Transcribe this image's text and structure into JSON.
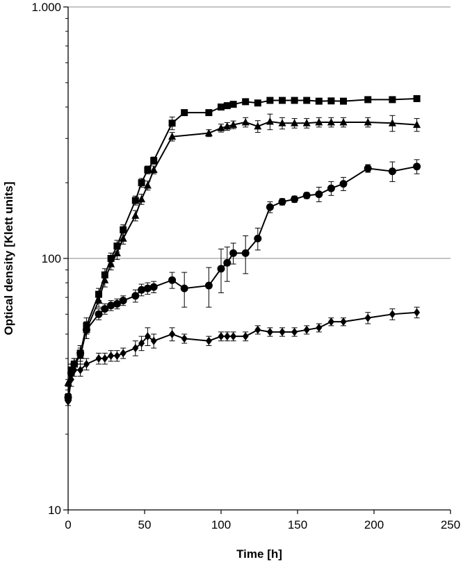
{
  "chart_data": {
    "type": "line",
    "title": "",
    "xlabel": "Time [h]",
    "ylabel": "Optical density [Klett units]",
    "x_scale": "linear",
    "y_scale": "log",
    "xlim": [
      0,
      250
    ],
    "ylim": [
      10,
      1000
    ],
    "x_ticks": [
      0,
      50,
      100,
      150,
      200,
      250
    ],
    "x_tick_labels": [
      "0",
      "50",
      "100",
      "150",
      "200",
      "250"
    ],
    "y_ticks": [
      10,
      100,
      1000
    ],
    "y_tick_labels": [
      "10",
      "100",
      "1.000"
    ],
    "gridlines_y": [
      100,
      1000
    ],
    "legend": "none",
    "series": [
      {
        "marker": "square",
        "x": [
          0,
          2,
          4,
          8,
          12,
          20,
          24,
          28,
          32,
          36,
          44,
          48,
          52,
          56,
          68,
          76,
          92,
          100,
          104,
          108,
          116,
          124,
          132,
          140,
          148,
          156,
          164,
          172,
          180,
          196,
          212,
          228
        ],
        "y": [
          28,
          36,
          38,
          42,
          54,
          72,
          86,
          100,
          112,
          130,
          170,
          200,
          225,
          245,
          345,
          380,
          380,
          400,
          405,
          410,
          420,
          415,
          425,
          425,
          425,
          425,
          422,
          423,
          422,
          428,
          428,
          432
        ],
        "err": [
          1,
          2,
          2,
          3,
          4,
          4,
          5,
          5,
          6,
          6,
          7,
          8,
          8,
          8,
          20,
          10,
          10,
          10,
          8,
          8,
          8,
          8,
          8,
          8,
          8,
          8,
          8,
          8,
          8,
          8,
          8,
          8
        ]
      },
      {
        "marker": "triangle",
        "x": [
          0,
          2,
          4,
          8,
          12,
          20,
          24,
          28,
          32,
          36,
          44,
          48,
          52,
          56,
          68,
          92,
          100,
          104,
          108,
          116,
          124,
          132,
          140,
          148,
          156,
          164,
          172,
          180,
          196,
          212,
          228
        ],
        "y": [
          32,
          36,
          38,
          41,
          52,
          68,
          82,
          95,
          105,
          120,
          148,
          172,
          195,
          225,
          305,
          315,
          330,
          335,
          340,
          348,
          335,
          350,
          345,
          345,
          345,
          348,
          348,
          348,
          348,
          345,
          340
        ],
        "err": [
          1,
          2,
          2,
          3,
          4,
          4,
          5,
          5,
          6,
          6,
          7,
          8,
          8,
          8,
          12,
          10,
          12,
          12,
          12,
          15,
          18,
          25,
          18,
          15,
          15,
          15,
          15,
          15,
          15,
          25,
          20
        ]
      },
      {
        "marker": "circle",
        "x": [
          0,
          2,
          4,
          8,
          12,
          20,
          24,
          28,
          32,
          36,
          44,
          48,
          52,
          56,
          68,
          76,
          92,
          100,
          104,
          108,
          116,
          124,
          132,
          140,
          148,
          156,
          164,
          172,
          180,
          196,
          212,
          228
        ],
        "y": [
          28,
          35,
          38,
          42,
          52,
          60,
          63,
          65,
          66,
          68,
          71,
          75,
          76,
          77,
          82,
          76,
          78,
          91,
          96,
          105,
          105,
          120,
          160,
          168,
          172,
          178,
          180,
          190,
          198,
          228,
          222,
          232
        ],
        "err": [
          1,
          2,
          2,
          3,
          4,
          3,
          3,
          3,
          3,
          3,
          4,
          4,
          4,
          4,
          6,
          12,
          14,
          18,
          15,
          10,
          18,
          12,
          8,
          5,
          5,
          5,
          12,
          12,
          12,
          8,
          20,
          15
        ]
      },
      {
        "marker": "diamond",
        "x": [
          0,
          2,
          4,
          8,
          12,
          20,
          24,
          28,
          32,
          36,
          44,
          48,
          52,
          56,
          68,
          76,
          92,
          100,
          104,
          108,
          116,
          124,
          132,
          140,
          148,
          156,
          164,
          172,
          180,
          196,
          212,
          228
        ],
        "y": [
          27,
          33,
          36,
          36,
          38,
          40,
          40,
          41,
          41,
          42,
          44,
          46,
          49,
          47,
          50,
          48,
          47,
          49,
          49,
          49,
          49,
          52,
          51,
          51,
          51,
          52,
          53,
          56,
          56,
          58,
          60,
          61
        ],
        "err": [
          1,
          2,
          2,
          2,
          2,
          2,
          2,
          2,
          2,
          2,
          3,
          3,
          4,
          3,
          3,
          2,
          2,
          2,
          2,
          2,
          2,
          2,
          2,
          2,
          2,
          2,
          2,
          2,
          2,
          3,
          3,
          3
        ]
      }
    ]
  }
}
